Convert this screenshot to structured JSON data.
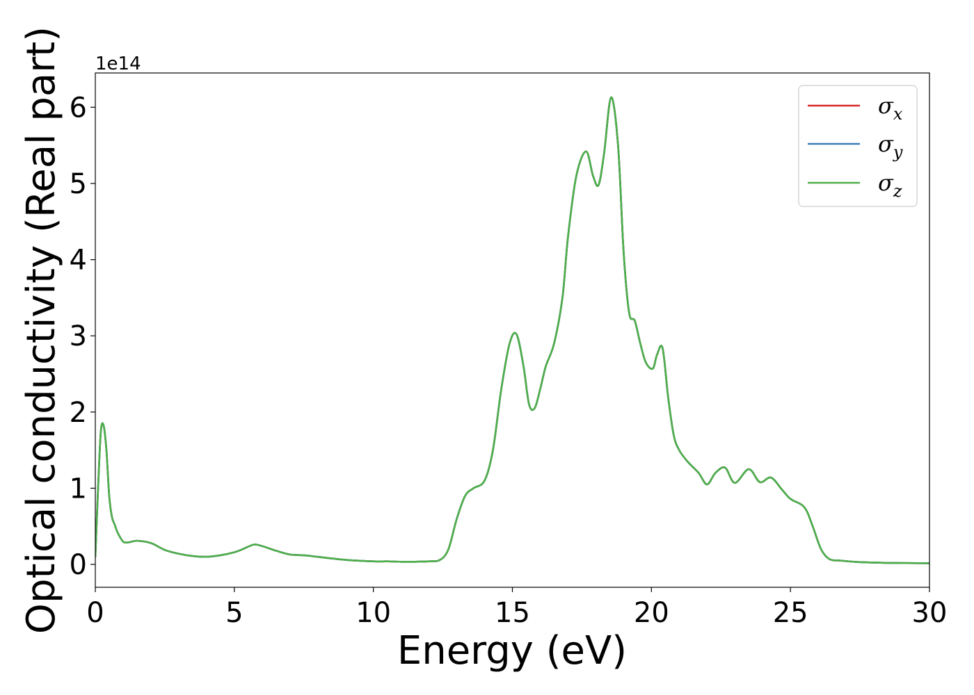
{
  "chart_data": {
    "type": "line",
    "xlabel": "Energy (eV)",
    "ylabel": "Optical conductivity (Real part)",
    "y_offset_label": "1e14",
    "y_scale": 100000000000000.0,
    "xlim": [
      0,
      30
    ],
    "ylim": [
      -0.3,
      6.45
    ],
    "x_ticks": [
      0,
      5,
      10,
      15,
      20,
      25,
      30
    ],
    "x_tick_labels": [
      "0",
      "5",
      "10",
      "15",
      "20",
      "25",
      "30"
    ],
    "y_ticks": [
      0,
      1,
      2,
      3,
      4,
      5,
      6
    ],
    "y_tick_labels": [
      "0",
      "1",
      "2",
      "3",
      "4",
      "5",
      "6"
    ],
    "grid": false,
    "legend_position": "top-right",
    "legend": [
      {
        "symbol": "σ",
        "sub": "x",
        "color": "#d62728"
      },
      {
        "symbol": "σ",
        "sub": "y",
        "color": "#3a7cb8"
      },
      {
        "symbol": "σ",
        "sub": "z",
        "color": "#4daf4a"
      }
    ],
    "x": [
      0,
      0.1,
      0.2,
      0.3,
      0.4,
      0.5,
      0.6,
      0.7,
      0.8,
      1.0,
      1.2,
      1.5,
      2.0,
      2.5,
      3.0,
      3.5,
      4.0,
      4.5,
      5.0,
      5.3,
      5.7,
      6.0,
      6.5,
      7.0,
      7.5,
      8.0,
      9.0,
      10.0,
      10.5,
      11.0,
      11.5,
      12.0,
      12.4,
      12.7,
      13.0,
      13.3,
      13.6,
      14.0,
      14.3,
      14.6,
      14.9,
      15.15,
      15.4,
      15.6,
      15.8,
      16.0,
      16.2,
      16.5,
      16.8,
      17.0,
      17.3,
      17.65,
      17.9,
      18.1,
      18.3,
      18.55,
      18.8,
      19.0,
      19.2,
      19.4,
      19.6,
      19.8,
      20.05,
      20.2,
      20.4,
      20.6,
      20.8,
      21.0,
      21.3,
      21.7,
      22.0,
      22.3,
      22.65,
      23.0,
      23.5,
      23.9,
      24.3,
      24.7,
      25.0,
      25.5,
      25.8,
      26.1,
      26.4,
      26.8,
      27.5,
      28.5,
      30.0
    ],
    "series": [
      {
        "values": [
          0.1,
          1.0,
          1.75,
          1.82,
          1.5,
          0.9,
          0.62,
          0.52,
          0.42,
          0.3,
          0.29,
          0.31,
          0.28,
          0.19,
          0.14,
          0.11,
          0.1,
          0.12,
          0.16,
          0.2,
          0.26,
          0.24,
          0.18,
          0.13,
          0.12,
          0.1,
          0.06,
          0.04,
          0.04,
          0.035,
          0.035,
          0.04,
          0.06,
          0.2,
          0.6,
          0.9,
          1.0,
          1.1,
          1.5,
          2.3,
          2.9,
          3.02,
          2.6,
          2.1,
          2.05,
          2.3,
          2.6,
          2.9,
          3.5,
          4.3,
          5.1,
          5.42,
          5.1,
          4.98,
          5.4,
          6.13,
          5.5,
          4.1,
          3.3,
          3.2,
          2.9,
          2.65,
          2.57,
          2.75,
          2.84,
          2.2,
          1.7,
          1.5,
          1.35,
          1.2,
          1.05,
          1.2,
          1.27,
          1.07,
          1.25,
          1.08,
          1.14,
          0.98,
          0.86,
          0.75,
          0.5,
          0.2,
          0.07,
          0.05,
          0.03,
          0.02,
          0.015
        ]
      },
      {
        "values": [
          0.1,
          1.0,
          1.75,
          1.82,
          1.5,
          0.9,
          0.62,
          0.52,
          0.42,
          0.3,
          0.29,
          0.31,
          0.28,
          0.19,
          0.14,
          0.11,
          0.1,
          0.12,
          0.16,
          0.2,
          0.26,
          0.24,
          0.18,
          0.13,
          0.12,
          0.1,
          0.06,
          0.04,
          0.04,
          0.035,
          0.035,
          0.04,
          0.06,
          0.2,
          0.6,
          0.9,
          1.0,
          1.1,
          1.5,
          2.3,
          2.9,
          3.02,
          2.6,
          2.1,
          2.05,
          2.3,
          2.6,
          2.9,
          3.5,
          4.3,
          5.1,
          5.42,
          5.1,
          4.98,
          5.4,
          6.13,
          5.5,
          4.1,
          3.3,
          3.2,
          2.9,
          2.65,
          2.57,
          2.75,
          2.84,
          2.2,
          1.7,
          1.5,
          1.35,
          1.2,
          1.05,
          1.2,
          1.27,
          1.07,
          1.25,
          1.08,
          1.14,
          0.98,
          0.86,
          0.75,
          0.5,
          0.2,
          0.07,
          0.05,
          0.03,
          0.02,
          0.015
        ]
      },
      {
        "values": [
          0.1,
          1.0,
          1.75,
          1.82,
          1.5,
          0.9,
          0.62,
          0.52,
          0.42,
          0.3,
          0.29,
          0.31,
          0.28,
          0.19,
          0.14,
          0.11,
          0.1,
          0.12,
          0.16,
          0.2,
          0.26,
          0.24,
          0.18,
          0.13,
          0.12,
          0.1,
          0.06,
          0.04,
          0.04,
          0.035,
          0.035,
          0.04,
          0.06,
          0.2,
          0.6,
          0.9,
          1.0,
          1.1,
          1.5,
          2.3,
          2.9,
          3.02,
          2.6,
          2.1,
          2.05,
          2.3,
          2.6,
          2.9,
          3.5,
          4.3,
          5.1,
          5.42,
          5.1,
          4.98,
          5.4,
          6.13,
          5.5,
          4.1,
          3.3,
          3.2,
          2.9,
          2.65,
          2.57,
          2.75,
          2.84,
          2.2,
          1.7,
          1.5,
          1.35,
          1.2,
          1.05,
          1.2,
          1.27,
          1.07,
          1.25,
          1.08,
          1.14,
          0.98,
          0.86,
          0.75,
          0.5,
          0.2,
          0.07,
          0.05,
          0.03,
          0.02,
          0.015
        ]
      }
    ]
  }
}
